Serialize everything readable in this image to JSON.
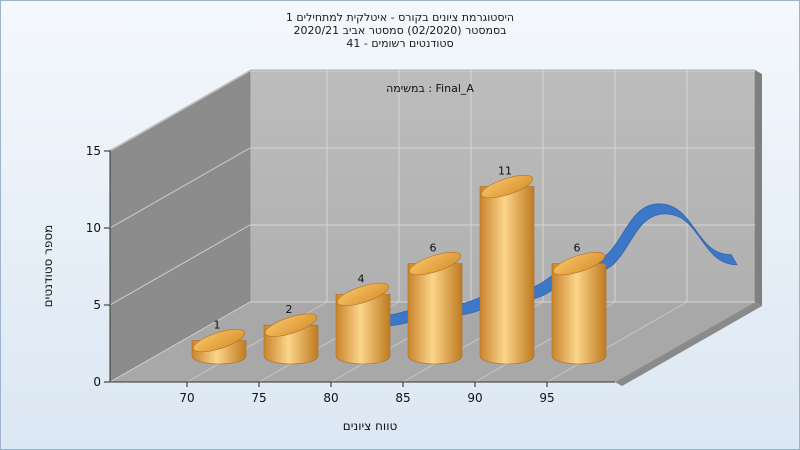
{
  "title_lines": [
    "היסטוגרמת ציונים בקורס - איטלקית למתחילים 1",
    "בסמסטר  (02/2020)  סמסטר אביב 2020/21",
    "סטודנטים רשומים - 41"
  ],
  "task_label": "במשימה : Final_A",
  "colors": {
    "bar": "#e8a646",
    "bar_light": "#fbd58a",
    "curve": "#3d78c8",
    "back_wall": "#b7b7b7",
    "side_wall": "#8c8c8c",
    "floor": "#a8a8a8"
  },
  "chart_data": {
    "type": "bar",
    "xlabel": "טווח ציונים",
    "ylabel": "מספר סטודנטים",
    "x_ticks": [
      "70",
      "75",
      "80",
      "85",
      "90",
      "95"
    ],
    "y_ticks": [
      "0",
      "5",
      "10",
      "15"
    ],
    "ylim": [
      0,
      15
    ],
    "grid": true,
    "bins": [
      "70-75",
      "75-80",
      "80-85",
      "85-90",
      "90-95",
      "95-100"
    ],
    "values": [
      1,
      2,
      4,
      6,
      11,
      6
    ],
    "curve": {
      "type": "area",
      "x": [
        75,
        80,
        85,
        90,
        95,
        100
      ],
      "values": [
        0.5,
        1.2,
        2.2,
        4.0,
        7.8,
        4.5
      ]
    }
  }
}
